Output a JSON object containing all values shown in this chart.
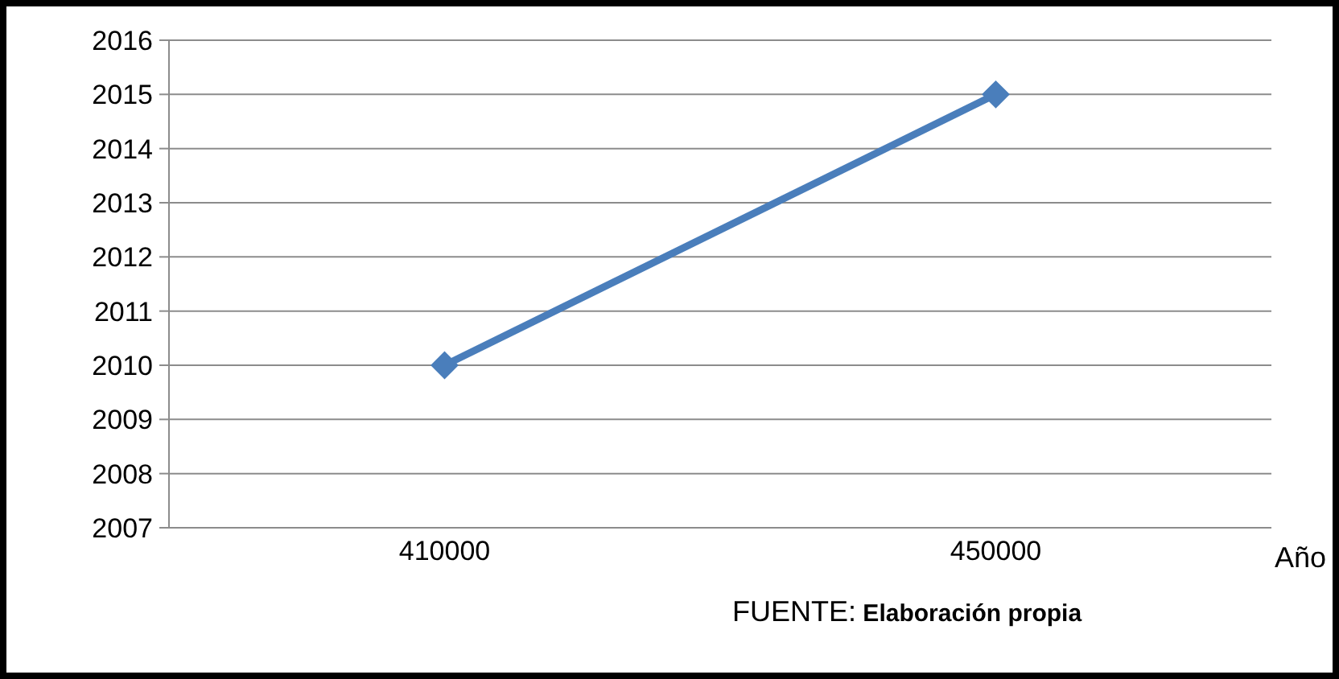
{
  "chart_data": {
    "type": "line",
    "xlabel": "Año",
    "categories": [
      "410000",
      "450000"
    ],
    "series": [
      {
        "color": "#4a7ebb",
        "values": [
          2010,
          2015
        ]
      }
    ],
    "ylim": [
      2007,
      2016
    ],
    "yticks": [
      2007,
      2008,
      2009,
      2010,
      2011,
      2012,
      2013,
      2014,
      2015,
      2016
    ],
    "grid": "y",
    "marker": "diamond",
    "legend": false,
    "annotations": [
      "FUENTE: Elaboración propia"
    ]
  }
}
